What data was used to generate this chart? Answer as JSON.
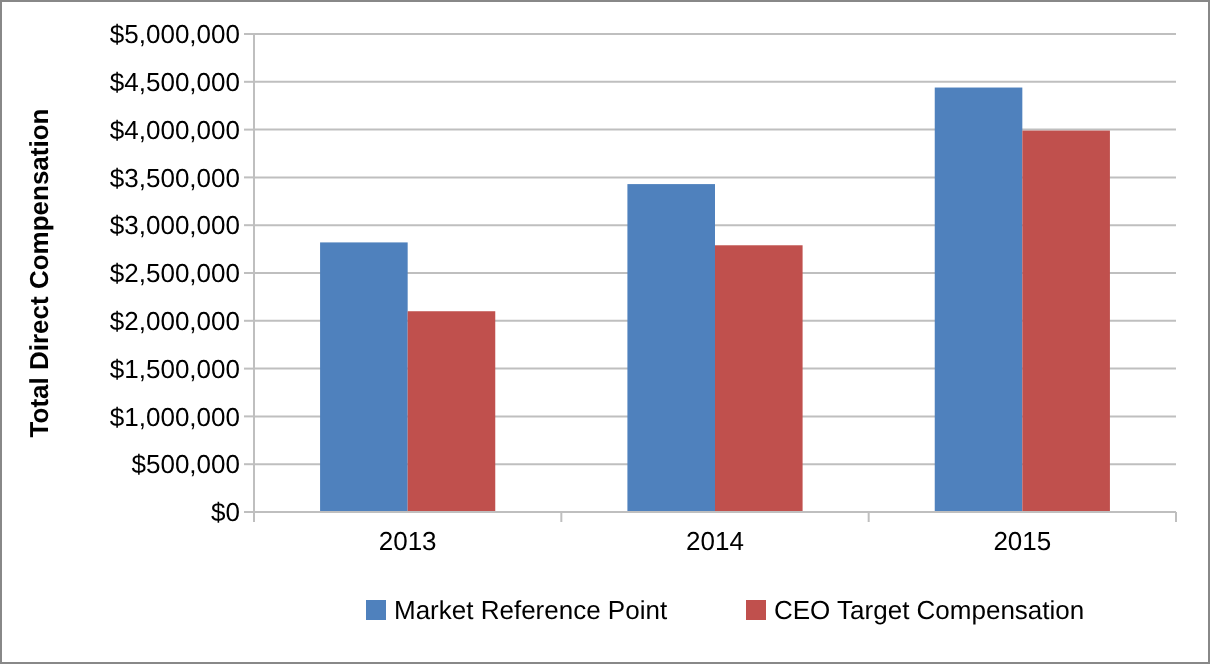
{
  "chart_data": {
    "type": "bar",
    "ylabel": "Total Direct Compensation",
    "categories": [
      "2013",
      "2014",
      "2015"
    ],
    "series": [
      {
        "name": "Market Reference Point",
        "color": "#4f81bd",
        "values": [
          2820000,
          3430000,
          4440000
        ]
      },
      {
        "name": "CEO Target Compensation",
        "color": "#c0504d",
        "values": [
          2100000,
          2790000,
          3990000
        ]
      }
    ],
    "ylim": [
      0,
      5000000
    ],
    "yticks": [
      {
        "value": 0,
        "label": "$0"
      },
      {
        "value": 500000,
        "label": "$500,000"
      },
      {
        "value": 1000000,
        "label": "$1,000,000"
      },
      {
        "value": 1500000,
        "label": "$1,500,000"
      },
      {
        "value": 2000000,
        "label": "$2,000,000"
      },
      {
        "value": 2500000,
        "label": "$2,500,000"
      },
      {
        "value": 3000000,
        "label": "$3,000,000"
      },
      {
        "value": 3500000,
        "label": "$3,500,000"
      },
      {
        "value": 4000000,
        "label": "$4,000,000"
      },
      {
        "value": 4500000,
        "label": "$4,500,000"
      },
      {
        "value": 5000000,
        "label": "$5,000,000"
      }
    ],
    "grid": "y",
    "legend": "bottom"
  }
}
